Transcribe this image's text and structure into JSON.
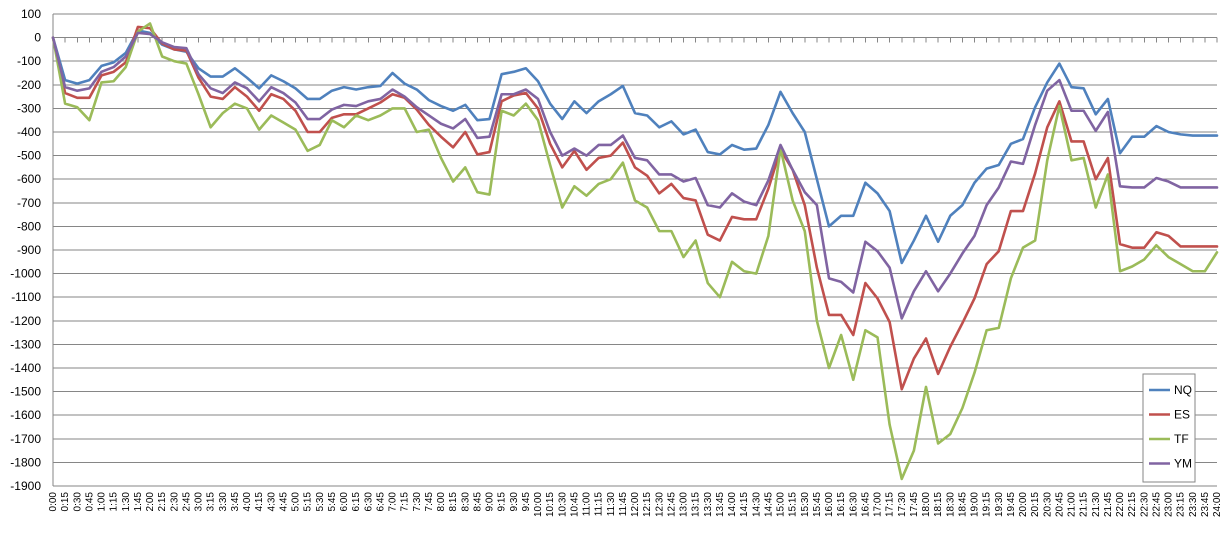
{
  "chart_data": {
    "type": "line",
    "title": "",
    "xlabel": "",
    "ylabel": "",
    "ylim": [
      -1900,
      100
    ],
    "y_ticks": [
      "100",
      "0",
      "-100",
      "-200",
      "-300",
      "-400",
      "-500",
      "-600",
      "-700",
      "-800",
      "-900",
      "-1000",
      "-1100",
      "-1200",
      "-1300",
      "-1400",
      "-1500",
      "-1600",
      "-1700",
      "-1800",
      "-1900"
    ],
    "grid": "horizontal",
    "legend": "bottom-right",
    "colors": {
      "NQ": "#4f81bd",
      "ES": "#c0504d",
      "TF": "#9bbb59",
      "YM": "#8064a2"
    },
    "categories": [
      "0:00",
      "0:15",
      "0:30",
      "0:45",
      "1:00",
      "1:15",
      "1:30",
      "1:45",
      "2:00",
      "2:15",
      "2:30",
      "2:45",
      "3:00",
      "3:15",
      "3:30",
      "3:45",
      "4:00",
      "4:15",
      "4:30",
      "4:45",
      "5:00",
      "5:15",
      "5:30",
      "5:45",
      "6:00",
      "6:15",
      "6:30",
      "6:45",
      "7:00",
      "7:15",
      "7:30",
      "7:45",
      "8:00",
      "8:15",
      "8:30",
      "8:45",
      "9:00",
      "9:15",
      "9:30",
      "9:45",
      "10:00",
      "10:15",
      "10:30",
      "10:45",
      "11:00",
      "11:15",
      "11:30",
      "11:45",
      "12:00",
      "12:15",
      "12:30",
      "12:45",
      "13:00",
      "13:15",
      "13:30",
      "13:45",
      "14:00",
      "14:15",
      "14:30",
      "14:45",
      "15:00",
      "15:15",
      "15:30",
      "15:45",
      "16:00",
      "16:15",
      "16:30",
      "16:45",
      "17:00",
      "17:15",
      "17:30",
      "17:45",
      "18:00",
      "18:15",
      "18:30",
      "18:45",
      "19:00",
      "19:15",
      "19:30",
      "19:45",
      "20:00",
      "20:15",
      "20:30",
      "20:45",
      "21:00",
      "21:15",
      "21:30",
      "21:45",
      "22:00",
      "22:15",
      "22:30",
      "22:45",
      "23:00",
      "23:15",
      "23:30",
      "23:45",
      "24:00"
    ],
    "series": [
      {
        "name": "NQ",
        "values": [
          0,
          -180,
          -195,
          -180,
          -120,
          -105,
          -65,
          30,
          20,
          -30,
          -50,
          -60,
          -130,
          -165,
          -165,
          -130,
          -170,
          -215,
          -160,
          -185,
          -215,
          -260,
          -260,
          -225,
          -210,
          -220,
          -210,
          -205,
          -150,
          -195,
          -220,
          -265,
          -290,
          -310,
          -285,
          -350,
          -345,
          -155,
          -145,
          -130,
          -185,
          -280,
          -345,
          -270,
          -320,
          -270,
          -240,
          -205,
          -320,
          -330,
          -380,
          -355,
          -410,
          -390,
          -485,
          -495,
          -455,
          -475,
          -470,
          -370,
          -230,
          -320,
          -400,
          -600,
          -800,
          -755,
          -755,
          -615,
          -660,
          -735,
          -955,
          -860,
          -755,
          -865,
          -755,
          -710,
          -615,
          -555,
          -540,
          -450,
          -430,
          -295,
          -190,
          -110,
          -210,
          -215,
          -325,
          -260,
          -490,
          -420,
          -420,
          -375,
          -400,
          -410,
          -415,
          -415,
          -415
        ]
      },
      {
        "name": "ES",
        "values": [
          0,
          -235,
          -255,
          -255,
          -160,
          -145,
          -105,
          45,
          40,
          -25,
          -50,
          -55,
          -170,
          -250,
          -260,
          -210,
          -250,
          -310,
          -240,
          -260,
          -310,
          -400,
          -400,
          -340,
          -325,
          -325,
          -300,
          -275,
          -240,
          -255,
          -305,
          -370,
          -420,
          -465,
          -400,
          -495,
          -485,
          -270,
          -245,
          -235,
          -300,
          -450,
          -550,
          -480,
          -560,
          -510,
          -500,
          -445,
          -550,
          -585,
          -660,
          -620,
          -680,
          -690,
          -835,
          -860,
          -760,
          -770,
          -770,
          -640,
          -475,
          -560,
          -710,
          -975,
          -1175,
          -1175,
          -1260,
          -1040,
          -1105,
          -1205,
          -1490,
          -1360,
          -1275,
          -1425,
          -1310,
          -1210,
          -1105,
          -960,
          -905,
          -735,
          -735,
          -575,
          -380,
          -270,
          -440,
          -440,
          -600,
          -510,
          -875,
          -890,
          -890,
          -825,
          -840,
          -885,
          -885,
          -885,
          -885
        ]
      },
      {
        "name": "TF",
        "values": [
          0,
          -280,
          -295,
          -350,
          -190,
          -185,
          -125,
          25,
          60,
          -80,
          -100,
          -110,
          -240,
          -380,
          -320,
          -280,
          -300,
          -390,
          -330,
          -360,
          -390,
          -480,
          -455,
          -350,
          -380,
          -330,
          -350,
          -330,
          -300,
          -300,
          -400,
          -390,
          -510,
          -610,
          -550,
          -655,
          -665,
          -310,
          -330,
          -280,
          -350,
          -540,
          -720,
          -630,
          -670,
          -620,
          -600,
          -530,
          -690,
          -720,
          -820,
          -820,
          -930,
          -860,
          -1040,
          -1100,
          -950,
          -990,
          -1000,
          -840,
          -470,
          -690,
          -820,
          -1200,
          -1400,
          -1260,
          -1450,
          -1240,
          -1270,
          -1640,
          -1870,
          -1750,
          -1480,
          -1720,
          -1680,
          -1570,
          -1420,
          -1240,
          -1230,
          -1020,
          -890,
          -860,
          -520,
          -290,
          -520,
          -510,
          -720,
          -580,
          -990,
          -970,
          -940,
          -880,
          -930,
          -960,
          -990,
          -990,
          -910
        ]
      },
      {
        "name": "YM",
        "values": [
          0,
          -210,
          -225,
          -215,
          -145,
          -125,
          -80,
          20,
          15,
          -20,
          -40,
          -45,
          -155,
          -215,
          -235,
          -190,
          -215,
          -270,
          -210,
          -235,
          -275,
          -345,
          -345,
          -305,
          -285,
          -290,
          -270,
          -260,
          -220,
          -250,
          -295,
          -330,
          -365,
          -385,
          -345,
          -425,
          -420,
          -240,
          -240,
          -220,
          -260,
          -400,
          -500,
          -470,
          -500,
          -455,
          -455,
          -415,
          -510,
          -520,
          -580,
          -580,
          -610,
          -595,
          -710,
          -720,
          -660,
          -695,
          -710,
          -605,
          -455,
          -560,
          -655,
          -710,
          -1020,
          -1035,
          -1080,
          -865,
          -905,
          -975,
          -1190,
          -1075,
          -990,
          -1075,
          -1000,
          -915,
          -840,
          -710,
          -635,
          -525,
          -535,
          -370,
          -225,
          -180,
          -310,
          -310,
          -395,
          -315,
          -630,
          -635,
          -635,
          -595,
          -610,
          -635,
          -635,
          -635,
          -635
        ]
      }
    ]
  }
}
